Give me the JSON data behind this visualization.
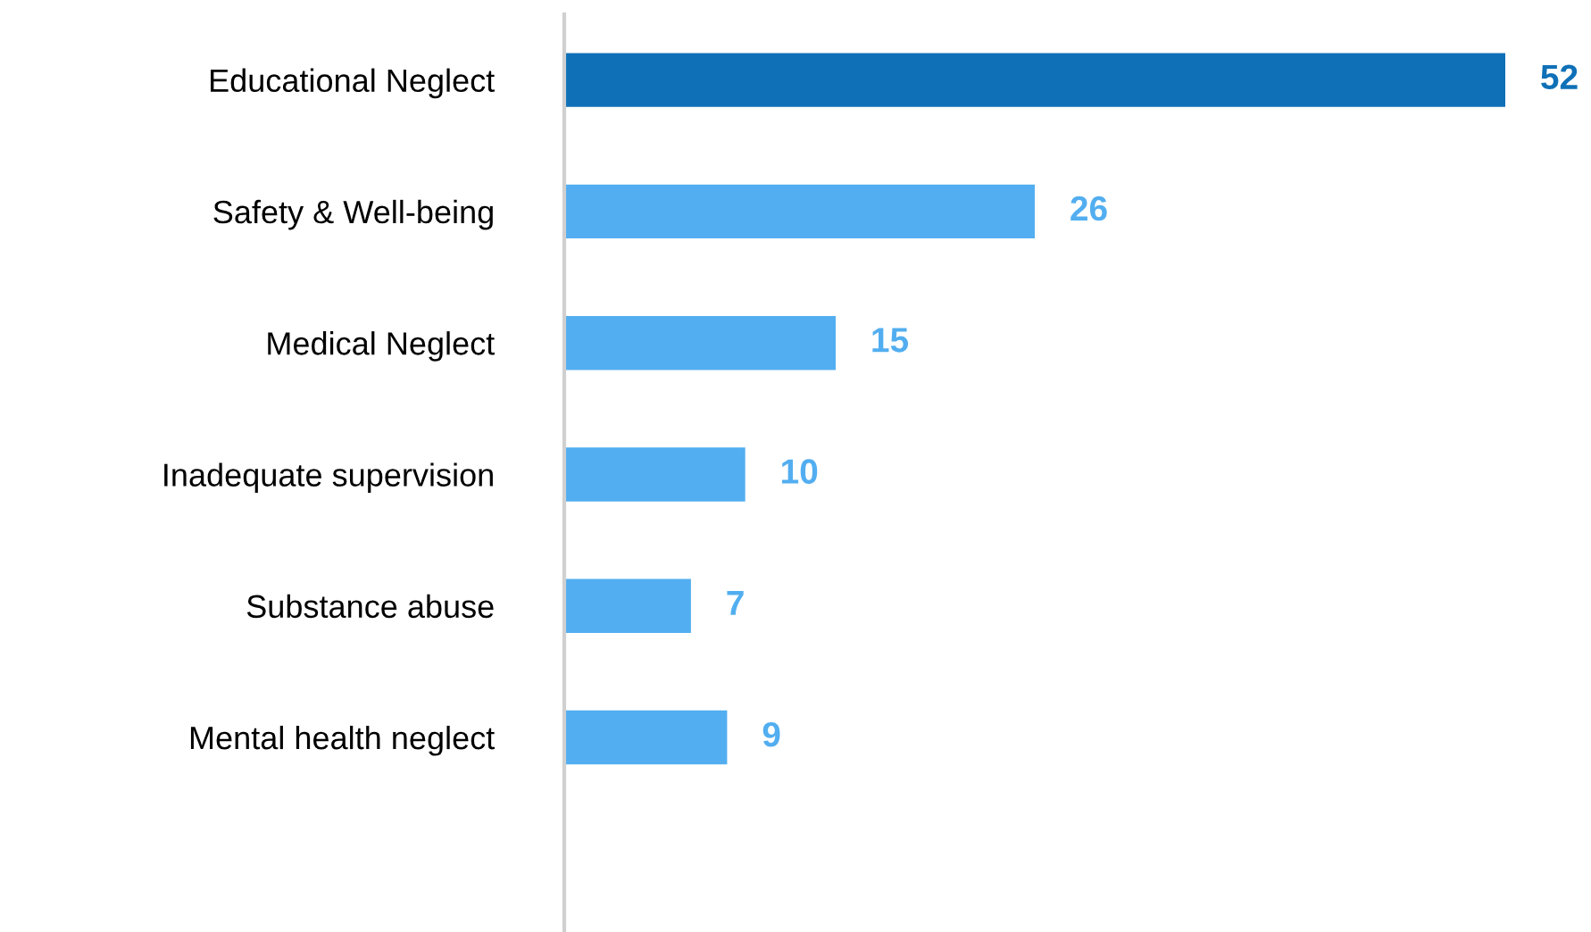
{
  "chart_data": {
    "type": "bar",
    "orientation": "horizontal",
    "categories": [
      "Educational Neglect",
      "Safety & Well-being",
      "Medical Neglect",
      "Inadequate supervision",
      "Substance abuse",
      "Mental health neglect"
    ],
    "values": [
      52,
      26,
      15,
      10,
      7,
      9
    ],
    "colors": [
      "#0f70b7",
      "#52aef0",
      "#52aef0",
      "#52aef0",
      "#52aef0",
      "#52aef0"
    ],
    "data_labels": true,
    "grid": false,
    "legend": false
  }
}
